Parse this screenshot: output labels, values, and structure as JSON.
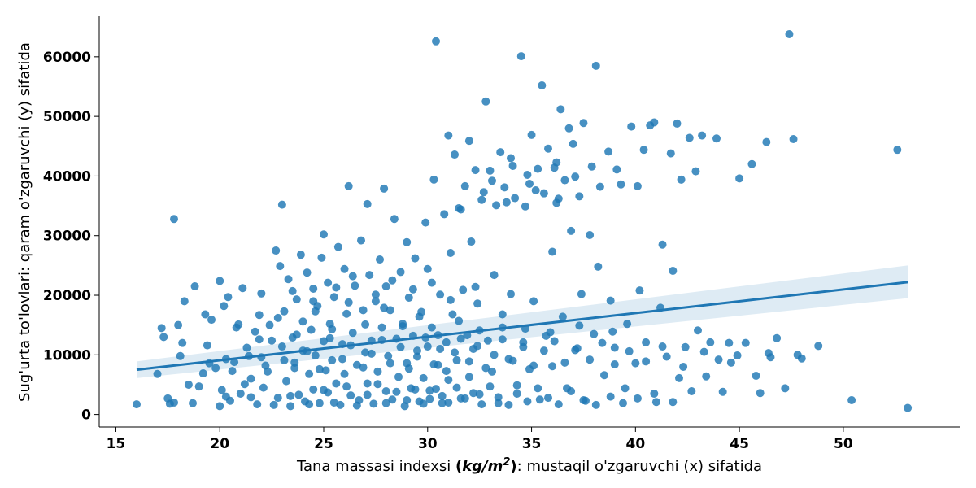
{
  "chart_data": {
    "type": "scatter",
    "title": "",
    "xlabel": {
      "prefix": "Tana massasi indexsi ",
      "unit_open": "(",
      "unit_main": "kg/m",
      "unit_sup": "2",
      "unit_close": ")",
      "suffix": ": mustaqil o'zgaruvchi (x) sifatida"
    },
    "ylabel": "Sug'urta to'lovlari: qaram o'zgaruvchi (y) sifatida",
    "xlim": [
      14.2,
      55.6
    ],
    "ylim": [
      -2100,
      66800
    ],
    "xticks": [
      15,
      20,
      25,
      30,
      35,
      40,
      45,
      50
    ],
    "xtick_labels": [
      "15",
      "20",
      "25",
      "30",
      "35",
      "40",
      "45",
      "50"
    ],
    "yticks": [
      0,
      10000,
      20000,
      30000,
      40000,
      50000,
      60000
    ],
    "ytick_labels": [
      "0",
      "10000",
      "20000",
      "30000",
      "40000",
      "50000",
      "60000"
    ],
    "grid": false,
    "regression": {
      "x": [
        16.0,
        53.1
      ],
      "y": [
        7500,
        22200
      ],
      "ci_lower": [
        6100,
        19500
      ],
      "ci_upper": [
        8900,
        25000
      ]
    },
    "points": [
      [
        16,
        1700
      ],
      [
        17,
        6800
      ],
      [
        17.2,
        14500
      ],
      [
        17.3,
        13000
      ],
      [
        17.5,
        2700
      ],
      [
        17.6,
        1800
      ],
      [
        17.8,
        32800
      ],
      [
        17.8,
        2000
      ],
      [
        18,
        15000
      ],
      [
        18.1,
        9800
      ],
      [
        18.2,
        12000
      ],
      [
        18.3,
        19000
      ],
      [
        18.5,
        5000
      ],
      [
        18.7,
        1900
      ],
      [
        18.8,
        21500
      ],
      [
        19,
        4700
      ],
      [
        19.2,
        6900
      ],
      [
        19.3,
        16800
      ],
      [
        19.5,
        8600
      ],
      [
        19.6,
        15900
      ],
      [
        19.8,
        7800
      ],
      [
        20,
        1400
      ],
      [
        20,
        22400
      ],
      [
        20.1,
        4100
      ],
      [
        20.2,
        18200
      ],
      [
        20.3,
        9300
      ],
      [
        20.4,
        19700
      ],
      [
        20.5,
        2300
      ],
      [
        20.7,
        8800
      ],
      [
        20.8,
        14600
      ],
      [
        21,
        3500
      ],
      [
        21.1,
        21200
      ],
      [
        21.3,
        11200
      ],
      [
        21.5,
        6000
      ],
      [
        21.5,
        2900
      ],
      [
        21.7,
        13900
      ],
      [
        21.8,
        1700
      ],
      [
        21.9,
        16700
      ],
      [
        22,
        20300
      ],
      [
        22,
        9600
      ],
      [
        22.1,
        4500
      ],
      [
        22.3,
        7200
      ],
      [
        22.4,
        15000
      ],
      [
        22.5,
        12400
      ],
      [
        22.7,
        27500
      ],
      [
        22.8,
        2800
      ],
      [
        22.9,
        24900
      ],
      [
        23,
        35200
      ],
      [
        23.1,
        17300
      ],
      [
        23.1,
        9100
      ],
      [
        23.2,
        5600
      ],
      [
        23.3,
        22700
      ],
      [
        23.4,
        1400
      ],
      [
        23.5,
        12900
      ],
      [
        23.6,
        7800
      ],
      [
        23.7,
        19300
      ],
      [
        23.8,
        3300
      ],
      [
        23.9,
        26800
      ],
      [
        24,
        10700
      ],
      [
        24,
        15600
      ],
      [
        24.1,
        2200
      ],
      [
        24.2,
        23800
      ],
      [
        24.3,
        6800
      ],
      [
        24.4,
        14200
      ],
      [
        24.5,
        21100
      ],
      [
        24.5,
        4200
      ],
      [
        24.6,
        9900
      ],
      [
        24.7,
        18200
      ],
      [
        24.8,
        1900
      ],
      [
        24.9,
        26300
      ],
      [
        25,
        12300
      ],
      [
        25,
        30200
      ],
      [
        25.1,
        7400
      ],
      [
        25.2,
        22100
      ],
      [
        25.2,
        3700
      ],
      [
        25.3,
        15200
      ],
      [
        25.4,
        9100
      ],
      [
        25.5,
        19700
      ],
      [
        25.6,
        5200
      ],
      [
        25.7,
        28100
      ],
      [
        25.8,
        1600
      ],
      [
        25.9,
        11800
      ],
      [
        26,
        24400
      ],
      [
        26,
        6800
      ],
      [
        26.1,
        16900
      ],
      [
        26.2,
        38300
      ],
      [
        26.3,
        3200
      ],
      [
        26.4,
        13700
      ],
      [
        26.5,
        21600
      ],
      [
        26.6,
        8300
      ],
      [
        26.7,
        2400
      ],
      [
        26.8,
        29200
      ],
      [
        26.9,
        17500
      ],
      [
        27,
        10400
      ],
      [
        27.1,
        5200
      ],
      [
        27.1,
        35300
      ],
      [
        27.2,
        23400
      ],
      [
        27.3,
        12400
      ],
      [
        27.4,
        1800
      ],
      [
        27.5,
        19000
      ],
      [
        27.6,
        7200
      ],
      [
        27.7,
        26000
      ],
      [
        27.8,
        14600
      ],
      [
        27.9,
        37900
      ],
      [
        28,
        3900
      ],
      [
        28,
        21500
      ],
      [
        28.1,
        9800
      ],
      [
        28.2,
        17500
      ],
      [
        28.3,
        2500
      ],
      [
        28.4,
        32800
      ],
      [
        28.5,
        12700
      ],
      [
        28.6,
        6300
      ],
      [
        28.7,
        23900
      ],
      [
        28.8,
        15200
      ],
      [
        28.9,
        1400
      ],
      [
        29,
        28900
      ],
      [
        29,
        8600
      ],
      [
        29.1,
        19600
      ],
      [
        29.2,
        4400
      ],
      [
        29.3,
        13200
      ],
      [
        29.4,
        26200
      ],
      [
        29.5,
        10700
      ],
      [
        29.6,
        2200
      ],
      [
        29.7,
        17200
      ],
      [
        29.8,
        6100
      ],
      [
        29.9,
        32200
      ],
      [
        30,
        11400
      ],
      [
        30,
        24400
      ],
      [
        30.1,
        4000
      ],
      [
        30.2,
        14600
      ],
      [
        30.3,
        39400
      ],
      [
        30.4,
        62600
      ],
      [
        30.5,
        8300
      ],
      [
        30.6,
        20100
      ],
      [
        30.7,
        1900
      ],
      [
        30.8,
        33600
      ],
      [
        30.9,
        12100
      ],
      [
        31,
        46800
      ],
      [
        31,
        5800
      ],
      [
        31.1,
        27100
      ],
      [
        31.2,
        16800
      ],
      [
        31.3,
        43600
      ],
      [
        31.4,
        9100
      ],
      [
        31.5,
        34600
      ],
      [
        31.6,
        2700
      ],
      [
        31.7,
        20900
      ],
      [
        31.8,
        38300
      ],
      [
        31.9,
        13300
      ],
      [
        32,
        45900
      ],
      [
        32,
        6300
      ],
      [
        32.1,
        29000
      ],
      [
        32.2,
        11000
      ],
      [
        32.3,
        41000
      ],
      [
        32.4,
        18600
      ],
      [
        32.5,
        3400
      ],
      [
        32.6,
        36000
      ],
      [
        32.8,
        52500
      ],
      [
        32.9,
        12400
      ],
      [
        33,
        40900
      ],
      [
        33.1,
        7200
      ],
      [
        33.2,
        23400
      ],
      [
        33.3,
        35100
      ],
      [
        33.4,
        1900
      ],
      [
        33.5,
        44000
      ],
      [
        33.6,
        14600
      ],
      [
        33.7,
        38100
      ],
      [
        33.9,
        9300
      ],
      [
        34,
        43000
      ],
      [
        34,
        20200
      ],
      [
        34.2,
        36300
      ],
      [
        34.3,
        4900
      ],
      [
        34.5,
        60100
      ],
      [
        34.6,
        12100
      ],
      [
        34.7,
        34900
      ],
      [
        34.8,
        40200
      ],
      [
        34.9,
        7600
      ],
      [
        35,
        46900
      ],
      [
        35.1,
        19000
      ],
      [
        35.3,
        41200
      ],
      [
        35.4,
        2500
      ],
      [
        35.5,
        55200
      ],
      [
        35.6,
        37100
      ],
      [
        35.7,
        13200
      ],
      [
        35.8,
        44600
      ],
      [
        36,
        27300
      ],
      [
        36,
        8100
      ],
      [
        36.1,
        41400
      ],
      [
        36.2,
        35500
      ],
      [
        36.4,
        51200
      ],
      [
        36.5,
        16400
      ],
      [
        36.6,
        39300
      ],
      [
        36.7,
        4400
      ],
      [
        36.8,
        48000
      ],
      [
        36.9,
        30800
      ],
      [
        37,
        45400
      ],
      [
        37.1,
        10800
      ],
      [
        37.3,
        36600
      ],
      [
        37.4,
        20200
      ],
      [
        37.5,
        48900
      ],
      [
        37.6,
        2300
      ],
      [
        37.8,
        30100
      ],
      [
        37.9,
        41600
      ],
      [
        38,
        13500
      ],
      [
        38.1,
        58500
      ],
      [
        38.2,
        24800
      ],
      [
        38.3,
        38200
      ],
      [
        38.5,
        6600
      ],
      [
        38.7,
        44100
      ],
      [
        38.8,
        19100
      ],
      [
        39,
        11200
      ],
      [
        39.1,
        41100
      ],
      [
        39.3,
        38600
      ],
      [
        39.5,
        4400
      ],
      [
        39.6,
        15200
      ],
      [
        39.8,
        48300
      ],
      [
        40,
        8600
      ],
      [
        40.1,
        38300
      ],
      [
        40.2,
        20800
      ],
      [
        40.4,
        44400
      ],
      [
        40.5,
        12100
      ],
      [
        40.7,
        48500
      ],
      [
        40.9,
        49000
      ],
      [
        41,
        2100
      ],
      [
        41.2,
        17900
      ],
      [
        41.3,
        28500
      ],
      [
        41.5,
        9700
      ],
      [
        41.7,
        43800
      ],
      [
        41.8,
        24100
      ],
      [
        42,
        48800
      ],
      [
        42.1,
        6100
      ],
      [
        42.2,
        39400
      ],
      [
        42.4,
        11300
      ],
      [
        42.6,
        46400
      ],
      [
        42.7,
        3900
      ],
      [
        42.9,
        40800
      ],
      [
        43,
        14100
      ],
      [
        43.2,
        46800
      ],
      [
        43.4,
        6400
      ],
      [
        43.6,
        12100
      ],
      [
        43.9,
        46300
      ],
      [
        44,
        9200
      ],
      [
        44.2,
        3800
      ],
      [
        44.5,
        12000
      ],
      [
        44.9,
        9900
      ],
      [
        45,
        39600
      ],
      [
        45.3,
        12000
      ],
      [
        45.6,
        42000
      ],
      [
        45.8,
        6500
      ],
      [
        46,
        3600
      ],
      [
        46.3,
        45700
      ],
      [
        46.5,
        9600
      ],
      [
        46.8,
        12800
      ],
      [
        47.2,
        4400
      ],
      [
        47.4,
        63800
      ],
      [
        47.6,
        46200
      ],
      [
        47.8,
        10000
      ],
      [
        48,
        9400
      ],
      [
        48.8,
        11500
      ],
      [
        50.4,
        2400
      ],
      [
        52.6,
        44400
      ],
      [
        53.1,
        1100
      ],
      [
        20.3,
        3000
      ],
      [
        21.2,
        5100
      ],
      [
        22.6,
        1600
      ],
      [
        23.4,
        3100
      ],
      [
        24.3,
        1700
      ],
      [
        25,
        4100
      ],
      [
        25.5,
        2000
      ],
      [
        26.1,
        4700
      ],
      [
        26.6,
        1500
      ],
      [
        27.1,
        3300
      ],
      [
        27.6,
        5100
      ],
      [
        28,
        1900
      ],
      [
        28.5,
        3800
      ],
      [
        29,
        2400
      ],
      [
        29.4,
        4200
      ],
      [
        29.8,
        1800
      ],
      [
        30.1,
        2600
      ],
      [
        30.4,
        4300
      ],
      [
        30.7,
        3100
      ],
      [
        31,
        2000
      ],
      [
        31.4,
        4500
      ],
      [
        31.8,
        2700
      ],
      [
        32.2,
        3600
      ],
      [
        32.6,
        1700
      ],
      [
        33,
        4700
      ],
      [
        33.4,
        2900
      ],
      [
        33.9,
        1600
      ],
      [
        34.3,
        3500
      ],
      [
        34.8,
        2200
      ],
      [
        35.3,
        4400
      ],
      [
        35.8,
        2800
      ],
      [
        36.3,
        1700
      ],
      [
        36.9,
        3900
      ],
      [
        37.5,
        2400
      ],
      [
        38.1,
        1600
      ],
      [
        38.8,
        3000
      ],
      [
        39.4,
        1900
      ],
      [
        40.1,
        2700
      ],
      [
        40.9,
        3500
      ],
      [
        41.8,
        2100
      ],
      [
        20.6,
        7300
      ],
      [
        21.4,
        9800
      ],
      [
        22.2,
        8200
      ],
      [
        23,
        11400
      ],
      [
        23.6,
        8700
      ],
      [
        24.2,
        10600
      ],
      [
        24.8,
        7600
      ],
      [
        25.3,
        12800
      ],
      [
        25.9,
        9300
      ],
      [
        26.3,
        11600
      ],
      [
        26.9,
        7900
      ],
      [
        27.3,
        10200
      ],
      [
        27.8,
        12500
      ],
      [
        28.2,
        8600
      ],
      [
        28.7,
        11300
      ],
      [
        29.1,
        7700
      ],
      [
        29.5,
        9700
      ],
      [
        29.9,
        12900
      ],
      [
        30.3,
        8400
      ],
      [
        30.6,
        11000
      ],
      [
        30.9,
        7300
      ],
      [
        31.3,
        10400
      ],
      [
        31.6,
        12700
      ],
      [
        32,
        8900
      ],
      [
        32.4,
        11500
      ],
      [
        32.8,
        7800
      ],
      [
        33.2,
        10000
      ],
      [
        33.6,
        12600
      ],
      [
        34.1,
        9000
      ],
      [
        34.6,
        11300
      ],
      [
        35.1,
        8200
      ],
      [
        35.6,
        10700
      ],
      [
        36.1,
        12300
      ],
      [
        36.6,
        8700
      ],
      [
        37.2,
        11100
      ],
      [
        37.8,
        9200
      ],
      [
        38.4,
        12000
      ],
      [
        39,
        8400
      ],
      [
        39.7,
        10600
      ],
      [
        40.5,
        8900
      ],
      [
        41.3,
        11400
      ],
      [
        42.3,
        8000
      ],
      [
        43.3,
        10500
      ],
      [
        44.6,
        8700
      ],
      [
        46.4,
        10300
      ],
      [
        19.4,
        11600
      ],
      [
        20.9,
        15100
      ],
      [
        21.9,
        12600
      ],
      [
        22.8,
        16200
      ],
      [
        23.7,
        13400
      ],
      [
        24.6,
        17300
      ],
      [
        25.4,
        14300
      ],
      [
        26.2,
        18800
      ],
      [
        27,
        15100
      ],
      [
        27.9,
        17900
      ],
      [
        28.8,
        14800
      ],
      [
        29.6,
        16400
      ],
      [
        30.5,
        13300
      ],
      [
        31.5,
        15700
      ],
      [
        32.5,
        14100
      ],
      [
        33.6,
        16800
      ],
      [
        34.7,
        14400
      ],
      [
        35.9,
        13800
      ],
      [
        37.3,
        14900
      ],
      [
        38.9,
        13900
      ],
      [
        23.5,
        20700
      ],
      [
        24.5,
        19000
      ],
      [
        25.6,
        21300
      ],
      [
        26.4,
        23200
      ],
      [
        27.5,
        20100
      ],
      [
        28.3,
        22500
      ],
      [
        29.3,
        21000
      ],
      [
        30.2,
        22100
      ],
      [
        31.1,
        19200
      ],
      [
        32.3,
        21400
      ],
      [
        33.1,
        39200
      ],
      [
        34.1,
        41700
      ],
      [
        35.2,
        37600
      ],
      [
        36.2,
        42300
      ],
      [
        37.1,
        39900
      ],
      [
        31.6,
        34400
      ],
      [
        32.7,
        37300
      ],
      [
        33.8,
        35600
      ],
      [
        34.9,
        38700
      ],
      [
        36.3,
        36200
      ]
    ]
  }
}
